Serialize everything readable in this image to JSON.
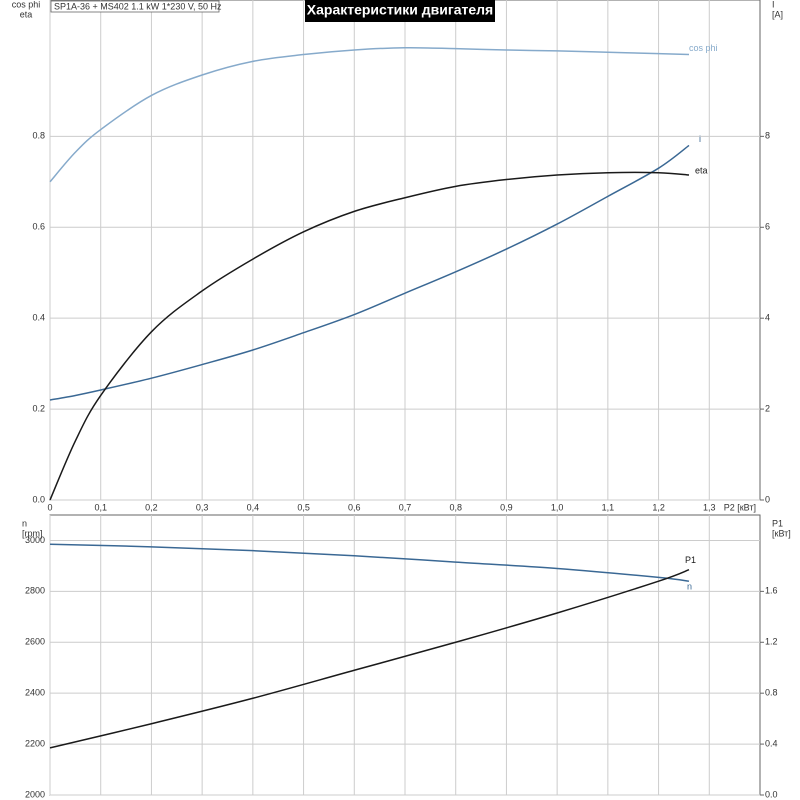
{
  "chart_data": [
    {
      "type": "line",
      "subtitle": "SP1A-36 + MS402   1.1 kW   1*230 V, 50 Hz",
      "title": "Характеристики двигателя",
      "ylabel": [
        "cos phi",
        "eta"
      ],
      "y2label": [
        "I",
        "[A]"
      ],
      "xlabel": "P2 [кВт]",
      "xlim": [
        0,
        1.4
      ],
      "xticks": [
        0,
        {
          "value": 0.1,
          "label": "0,1"
        },
        {
          "value": 0.2,
          "label": "0,2"
        },
        {
          "value": 0.3,
          "label": "0,3"
        },
        {
          "value": 0.4,
          "label": "0,4"
        },
        {
          "value": 0.5,
          "label": "0,5"
        },
        {
          "value": 0.6,
          "label": "0,6"
        },
        {
          "value": 0.7,
          "label": "0,7"
        },
        {
          "value": 0.8,
          "label": "0,8"
        },
        {
          "value": 0.9,
          "label": "0,9"
        },
        {
          "value": 1.0,
          "label": "1,0"
        },
        {
          "value": 1.1,
          "label": "1,1"
        },
        {
          "value": 1.2,
          "label": "1,2"
        },
        {
          "value": 1.3,
          "label": "1,3"
        }
      ],
      "ylim": [
        0,
        1.1
      ],
      "yticks": [
        {
          "value": 0,
          "label": "0.0"
        },
        0.2,
        0.4,
        0.6,
        0.8
      ],
      "y2lim": [
        0,
        11
      ],
      "y2ticks": [
        0,
        2,
        4,
        6,
        8
      ],
      "grid": true,
      "x": [
        0,
        0.05,
        0.1,
        0.2,
        0.3,
        0.4,
        0.5,
        0.6,
        0.7,
        0.8,
        0.9,
        1.0,
        1.1,
        1.2,
        1.26
      ],
      "series": [
        {
          "name": "cos phi",
          "color": "#86aacb",
          "values": [
            0.7,
            0.765,
            0.815,
            0.89,
            0.935,
            0.965,
            0.98,
            0.99,
            0.995,
            0.993,
            0.99,
            0.988,
            0.985,
            0.982,
            0.98
          ]
        },
        {
          "name": "i",
          "color": "#3a6894",
          "axis": "y2",
          "values": [
            2.2,
            2.3,
            2.42,
            2.68,
            2.98,
            3.3,
            3.68,
            4.08,
            4.55,
            5.02,
            5.52,
            6.07,
            6.68,
            7.3,
            7.8
          ]
        },
        {
          "name": "eta",
          "color": "#1a1a1a",
          "values": [
            0,
            0.13,
            0.23,
            0.37,
            0.46,
            0.53,
            0.59,
            0.635,
            0.665,
            0.69,
            0.705,
            0.715,
            0.72,
            0.72,
            0.715
          ]
        }
      ]
    },
    {
      "type": "line",
      "ylabel": [
        "n",
        "[rpm]"
      ],
      "y2label": [
        "P1",
        "[кВт]"
      ],
      "xlim": [
        0,
        1.4
      ],
      "ylim": [
        2000,
        3100
      ],
      "yticks": [
        2000,
        2200,
        2400,
        2600,
        2800,
        3000
      ],
      "y2lim": [
        0,
        2.2
      ],
      "y2ticks": [
        {
          "value": 0,
          "label": "0.0"
        },
        0.4,
        0.8,
        1.2,
        1.6
      ],
      "grid": true,
      "x": [
        0,
        0.2,
        0.4,
        0.6,
        0.8,
        1.0,
        1.2,
        1.26
      ],
      "series": [
        {
          "name": "n",
          "color": "#3a6894",
          "values": [
            2985,
            2975,
            2960,
            2940,
            2915,
            2890,
            2855,
            2840
          ]
        },
        {
          "name": "P1",
          "color": "#1a1a1a",
          "axis": "y2",
          "values": [
            0.37,
            0.56,
            0.76,
            0.98,
            1.2,
            1.43,
            1.68,
            1.77
          ]
        }
      ]
    }
  ]
}
